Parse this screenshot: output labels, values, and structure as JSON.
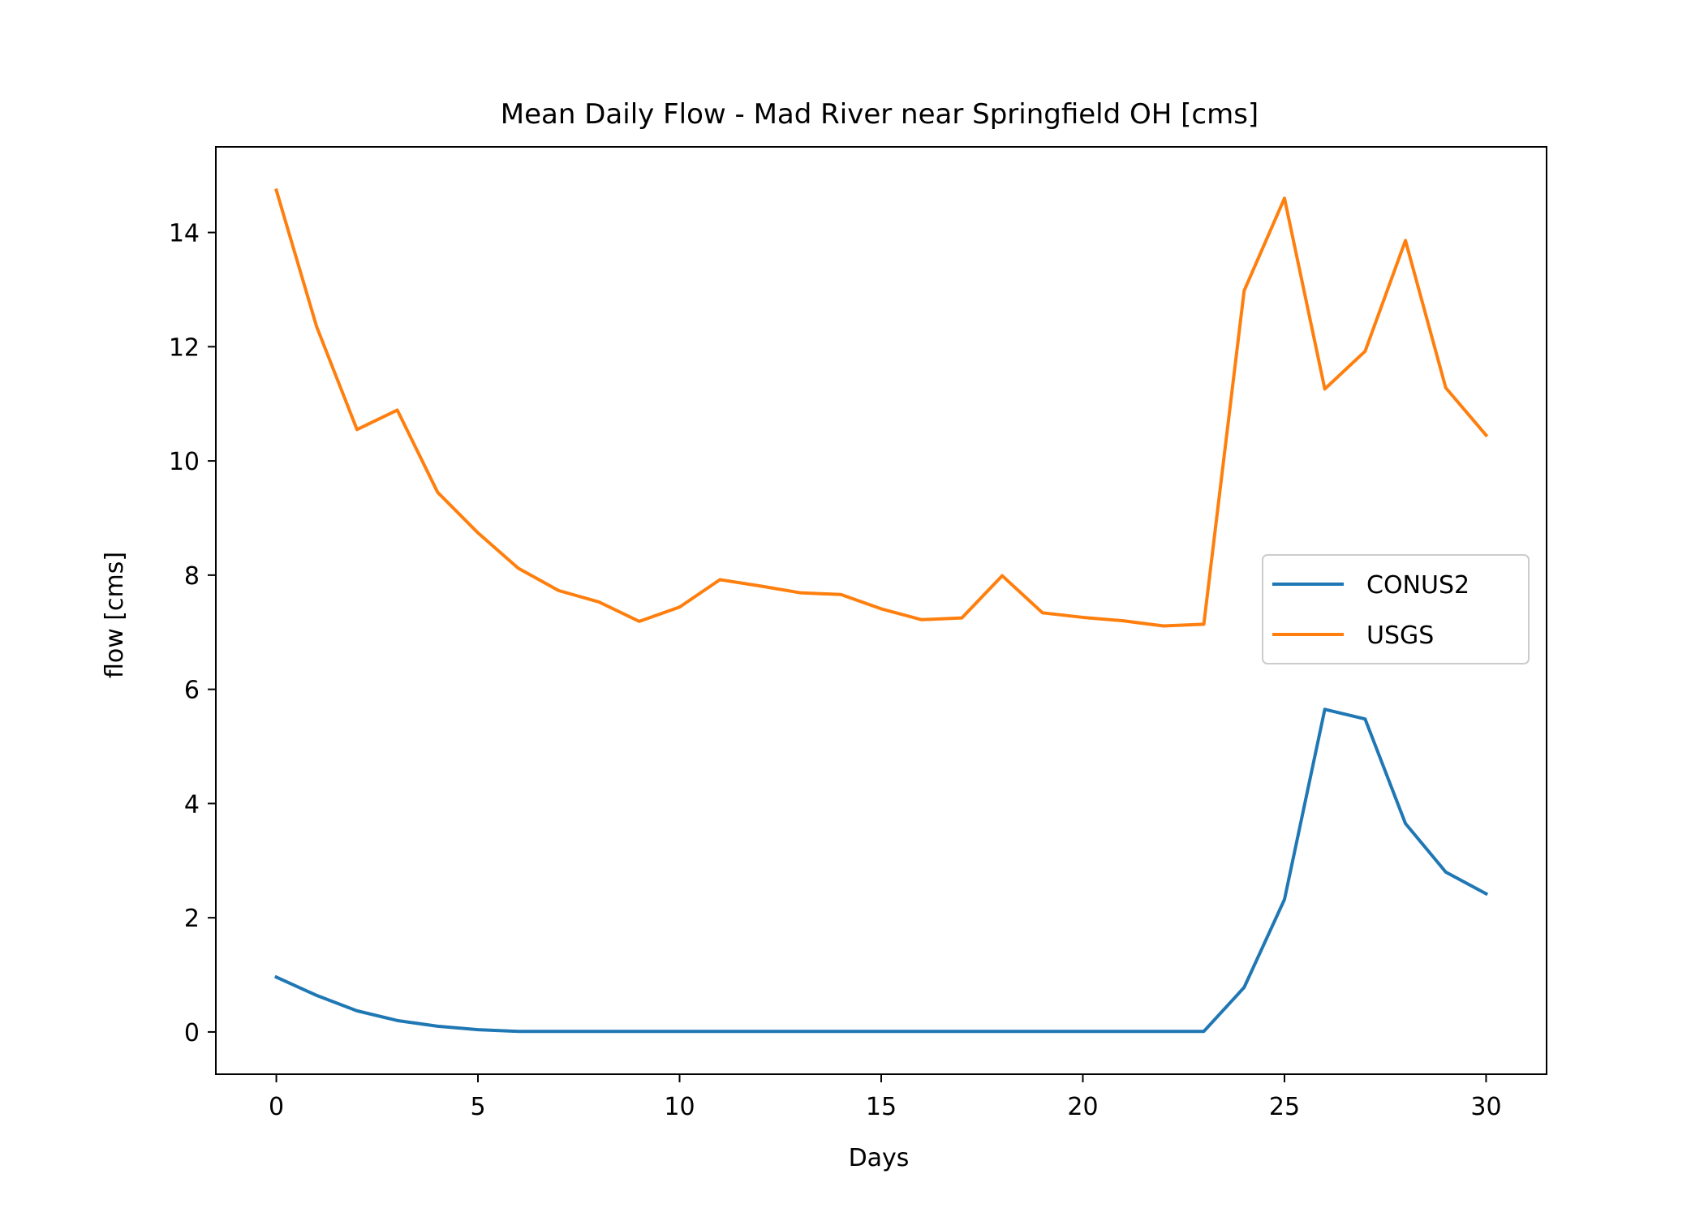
{
  "chart_data": {
    "type": "line",
    "title": "Mean Daily Flow - Mad River near Springfield OH [cms]",
    "xlabel": "Days",
    "ylabel": "flow [cms]",
    "xlim": [
      -1.5,
      31.5
    ],
    "ylim": [
      -0.74,
      15.5
    ],
    "xticks": [
      0,
      5,
      10,
      15,
      20,
      25,
      30
    ],
    "yticks": [
      0,
      2,
      4,
      6,
      8,
      10,
      12,
      14
    ],
    "grid": false,
    "legend_position": "center-right",
    "x": [
      0,
      1,
      2,
      3,
      4,
      5,
      6,
      7,
      8,
      9,
      10,
      11,
      12,
      13,
      14,
      15,
      16,
      17,
      18,
      19,
      20,
      21,
      22,
      23,
      24,
      25,
      26,
      27,
      28,
      29,
      30
    ],
    "series": [
      {
        "name": "CONUS2",
        "color": "#1f77b4",
        "values": [
          0.96,
          0.64,
          0.37,
          0.2,
          0.1,
          0.04,
          0.01,
          0.01,
          0.01,
          0.01,
          0.01,
          0.01,
          0.01,
          0.01,
          0.01,
          0.01,
          0.01,
          0.01,
          0.01,
          0.01,
          0.01,
          0.01,
          0.01,
          0.01,
          0.78,
          2.32,
          5.65,
          5.48,
          3.65,
          2.8,
          2.42
        ]
      },
      {
        "name": "USGS",
        "color": "#ff7f0e",
        "values": [
          14.74,
          12.35,
          10.55,
          10.89,
          9.45,
          8.74,
          8.12,
          7.73,
          7.53,
          7.19,
          7.44,
          7.92,
          7.81,
          7.69,
          7.66,
          7.41,
          7.22,
          7.25,
          7.99,
          7.34,
          7.26,
          7.2,
          7.11,
          7.14,
          12.98,
          14.6,
          11.26,
          11.92,
          13.86,
          11.28,
          10.45
        ]
      }
    ]
  }
}
